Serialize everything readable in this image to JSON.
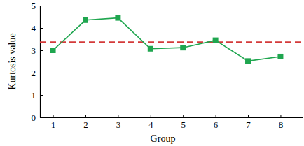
{
  "chart_data": {
    "type": "line",
    "x_label": "Group",
    "y_label": "Kurtosis value",
    "x": [
      1,
      2,
      3,
      4,
      5,
      6,
      7,
      8
    ],
    "values": [
      3.0,
      4.35,
      4.45,
      3.07,
      3.12,
      3.45,
      2.52,
      2.72
    ],
    "color": "#1fa64f",
    "marker": "square",
    "line_style": "solid",
    "xlim": [
      0.6,
      8.68
    ],
    "xticks": [
      1,
      2,
      3,
      4,
      5,
      6,
      7,
      8
    ],
    "ylim": [
      0,
      5
    ],
    "yticks": [
      0,
      1,
      2,
      3,
      4,
      5
    ],
    "reference_line": {
      "value": 3.37,
      "color": "#d43a3a",
      "line_style": "dashed"
    },
    "grid": false
  }
}
